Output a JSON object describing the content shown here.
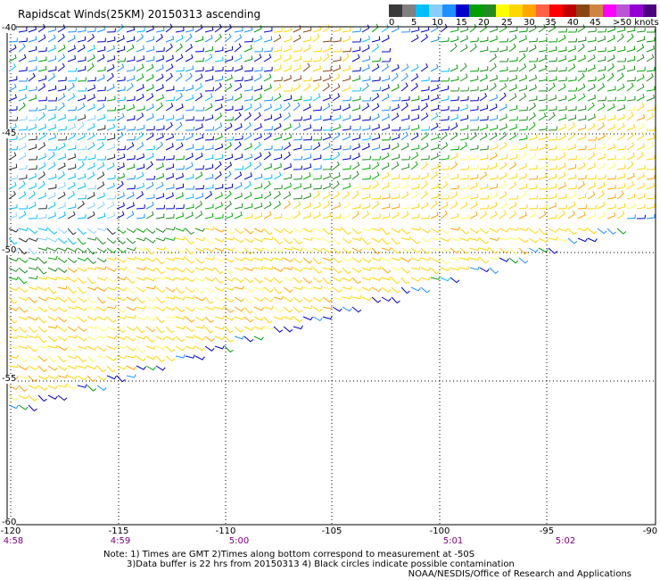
{
  "title": "Rapidscat Winds(25KM) 20150313 ascending",
  "colorbar": {
    "labels": [
      "0",
      "5",
      "10",
      "15",
      "20",
      "25",
      "30",
      "35",
      "40",
      "45",
      ">50 knots"
    ],
    "colors": [
      "#3a3a3a",
      "#808080",
      "#00bfff",
      "#87cefa",
      "#1e90ff",
      "#0000cd",
      "#00a000",
      "#228b22",
      "#ffff00",
      "#ffd700",
      "#ffa500",
      "#ff6347",
      "#ff0000",
      "#c00000",
      "#8b4513",
      "#cd853f",
      "#ff00ff",
      "#ba55d3",
      "#9400d3",
      "#4b0082"
    ]
  },
  "axes": {
    "lon_labels": [
      "-120",
      "-115",
      "-110",
      "-105",
      "-100",
      "-95",
      "-90"
    ],
    "lat_labels": [
      "-40",
      "-45",
      "-50",
      "-55",
      "-60"
    ],
    "time_labels": [
      "4:58",
      "4:59",
      "5:00",
      "5:01",
      "5:02"
    ]
  },
  "notes": {
    "line1": "Note: 1) Times are GMT 2)Times along bottom correspond to measurement at -50S",
    "line2": "3)Data buffer is 22 hrs from 20150313 4) Black circles indicate possible contamination",
    "credit": "NOAA/NESDIS/Office of Research and Applications"
  }
}
